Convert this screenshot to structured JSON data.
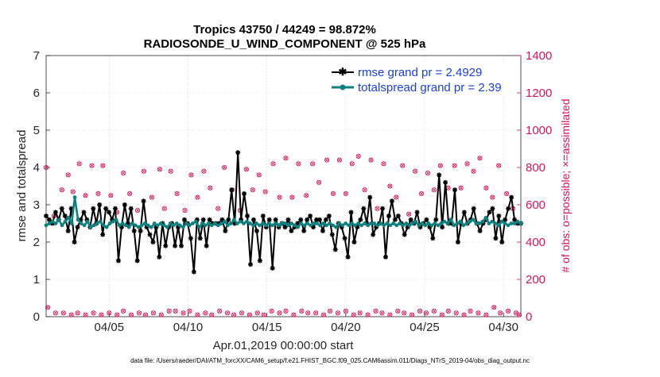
{
  "chart_data": {
    "type": "line",
    "title_line1": "Tropics 43750 / 44249 = 98.872%",
    "title_line2": "RADIOSONDE_U_WIND_COMPONENT @ 525 hPa",
    "xlabel": "Apr.01,2019 00:00:00 start",
    "ylabel": "rmse and totalspread",
    "ylabel_right": "# of obs: o=possible; ×=assimilated",
    "x_ticks": [
      {
        "day": 5,
        "label": "04/05"
      },
      {
        "day": 10,
        "label": "04/10"
      },
      {
        "day": 15,
        "label": "04/15"
      },
      {
        "day": 20,
        "label": "04/20"
      },
      {
        "day": 25,
        "label": "04/25"
      },
      {
        "day": 30,
        "label": "04/30"
      }
    ],
    "xlim": [
      1,
      31.1
    ],
    "ylim": [
      0,
      7
    ],
    "y_ticks": [
      "0",
      "1",
      "2",
      "3",
      "4",
      "5",
      "6",
      "7"
    ],
    "ylim_right": [
      0,
      1400
    ],
    "y_ticks_right": [
      "0",
      "200",
      "400",
      "600",
      "800",
      "1000",
      "1200",
      "1400"
    ],
    "footer": "data file: /Users/raeder/DAI/ATM_forcXX/CAM6_setup/f.e21.FHIST_BGC.f09_025.CAM6assim.011/Diags_NTrS_2019-04/obs_diag_output.nc",
    "colors": {
      "rmse": "#000000",
      "spread": "#0f8080",
      "obs": "#d6135a",
      "legend_text": "#1a3fd6"
    },
    "series": [
      {
        "name": "rmse grand pr = 2.4929",
        "key": "rmse",
        "values": [
          2.7,
          2.6,
          2.5,
          2.8,
          2.6,
          2.9,
          2.7,
          2.3,
          2.9,
          2.0,
          2.4,
          2.6,
          2.8,
          2.6,
          2.4,
          2.9,
          2.5,
          3.0,
          2.2,
          2.9,
          2.8,
          2.6,
          2.9,
          1.5,
          2.4,
          3.0,
          2.5,
          2.9,
          2.3,
          1.5,
          2.3,
          3.1,
          2.4,
          2.2,
          2.0,
          2.4,
          1.6,
          2.5,
          1.9,
          2.4,
          2.5,
          1.9,
          2.4,
          1.9,
          2.6,
          2.5,
          2.1,
          1.2,
          2.6,
          2.1,
          2.6,
          1.9,
          2.6,
          2.5,
          2.5,
          2.5,
          2.6,
          2.3,
          2.6,
          3.4,
          2.5,
          4.4,
          2.6,
          3.3,
          2.7,
          1.4,
          2.6,
          2.3,
          1.5,
          2.7,
          2.4,
          2.6,
          1.3,
          2.6,
          2.4,
          2.5,
          2.4,
          2.6,
          2.3,
          2.4,
          2.5,
          2.6,
          2.3,
          2.6,
          2.7,
          2.4,
          2.6,
          2.6,
          2.3,
          2.6,
          2.7,
          2.2,
          1.8,
          2.5,
          2.4,
          2.1,
          1.6,
          2.8,
          2.0,
          2.4,
          2.6,
          2.9,
          2.5,
          3.2,
          2.2,
          2.4,
          2.5,
          2.9,
          1.6,
          2.7,
          3.1,
          2.6,
          2.7,
          2.5,
          2.2,
          2.4,
          2.6,
          2.5,
          2.8,
          2.4,
          2.5,
          2.6,
          2.4,
          2.1,
          2.6,
          3.8,
          2.4,
          3.6,
          2.5,
          2.5,
          3.4,
          2.0,
          2.5,
          2.8,
          2.5,
          2.6,
          2.9,
          2.5,
          2.3,
          2.5,
          2.6,
          2.8,
          2.9,
          2.1,
          2.7,
          2.0,
          2.6,
          2.9,
          3.2,
          2.6,
          2.5,
          2.5
        ]
      },
      {
        "name": "totalspread grand pr = 2.39",
        "key": "spread",
        "values": [
          2.45,
          2.5,
          2.55,
          2.5,
          2.6,
          2.45,
          2.55,
          2.65,
          2.5,
          3.2,
          2.6,
          2.5,
          2.45,
          2.55,
          2.4,
          2.45,
          2.5,
          2.55,
          2.45,
          2.4,
          2.5,
          2.55,
          2.6,
          2.45,
          2.5,
          2.45,
          2.4,
          2.5,
          2.45,
          2.4,
          2.45,
          2.5,
          2.45,
          2.4,
          2.5,
          2.45,
          2.5,
          2.45,
          2.4,
          2.5,
          2.45,
          2.5,
          2.45,
          2.4,
          2.5,
          2.45,
          2.5,
          2.55,
          2.4,
          2.5,
          2.45,
          2.5,
          2.45,
          2.5,
          2.45,
          2.5,
          2.55,
          2.45,
          2.5,
          2.6,
          2.5,
          2.55,
          2.5,
          2.55,
          2.5,
          2.45,
          2.5,
          2.45,
          2.5,
          2.45,
          2.5,
          2.45,
          2.5,
          2.45,
          2.5,
          2.5,
          2.45,
          2.5,
          2.45,
          2.4,
          2.5,
          2.45,
          2.5,
          2.45,
          2.5,
          2.5,
          2.45,
          2.5,
          2.45,
          2.5,
          2.45,
          2.4,
          2.5,
          2.45,
          2.5,
          2.45,
          2.5,
          2.45,
          2.5,
          2.45,
          2.5,
          2.45,
          2.5,
          2.5,
          2.45,
          2.5,
          2.45,
          2.5,
          2.45,
          2.5,
          2.45,
          2.5,
          2.45,
          2.5,
          2.45,
          2.5,
          2.55,
          2.45,
          2.5,
          2.45,
          2.5,
          2.45,
          2.5,
          2.45,
          2.5,
          2.55,
          2.5,
          2.6,
          2.45,
          2.5,
          2.55,
          2.45,
          2.5,
          2.55,
          2.6,
          2.5,
          2.5,
          2.55,
          2.65,
          2.5,
          2.55,
          2.5,
          2.45,
          2.55,
          2.5,
          2.45,
          2.5,
          2.5,
          2.55,
          2.5
        ]
      }
    ],
    "obs_possible": [
      {
        "day": 1.0,
        "count": 800
      },
      {
        "day": 1.5,
        "count": 540
      },
      {
        "day": 2.0,
        "count": 680
      },
      {
        "day": 2.4,
        "count": 760
      },
      {
        "day": 2.7,
        "count": 670
      },
      {
        "day": 3.1,
        "count": 820
      },
      {
        "day": 3.5,
        "count": 650
      },
      {
        "day": 3.9,
        "count": 810
      },
      {
        "day": 4.3,
        "count": 660
      },
      {
        "day": 4.6,
        "count": 810
      },
      {
        "day": 5.1,
        "count": 650
      },
      {
        "day": 5.5,
        "count": 560
      },
      {
        "day": 5.9,
        "count": 770
      },
      {
        "day": 6.3,
        "count": 660
      },
      {
        "day": 6.8,
        "count": 570
      },
      {
        "day": 7.2,
        "count": 780
      },
      {
        "day": 7.7,
        "count": 640
      },
      {
        "day": 8.2,
        "count": 790
      },
      {
        "day": 8.5,
        "count": 580
      },
      {
        "day": 8.9,
        "count": 780
      },
      {
        "day": 9.3,
        "count": 660
      },
      {
        "day": 9.8,
        "count": 570
      },
      {
        "day": 10.2,
        "count": 760
      },
      {
        "day": 10.6,
        "count": 640
      },
      {
        "day": 11.0,
        "count": 780
      },
      {
        "day": 11.4,
        "count": 690
      },
      {
        "day": 11.9,
        "count": 580
      },
      {
        "day": 12.3,
        "count": 800
      },
      {
        "day": 12.8,
        "count": 680
      },
      {
        "day": 13.3,
        "count": 570
      },
      {
        "day": 13.7,
        "count": 790
      },
      {
        "day": 14.1,
        "count": 680
      },
      {
        "day": 14.5,
        "count": 760
      },
      {
        "day": 14.9,
        "count": 670
      },
      {
        "day": 15.4,
        "count": 820
      },
      {
        "day": 15.8,
        "count": 640
      },
      {
        "day": 16.2,
        "count": 850
      },
      {
        "day": 16.6,
        "count": 640
      },
      {
        "day": 17.0,
        "count": 820
      },
      {
        "day": 17.5,
        "count": 650
      },
      {
        "day": 17.9,
        "count": 820
      },
      {
        "day": 18.3,
        "count": 720
      },
      {
        "day": 18.8,
        "count": 840
      },
      {
        "day": 19.2,
        "count": 660
      },
      {
        "day": 19.6,
        "count": 840
      },
      {
        "day": 20.0,
        "count": 660
      },
      {
        "day": 20.4,
        "count": 820
      },
      {
        "day": 20.8,
        "count": 860
      },
      {
        "day": 21.2,
        "count": 680
      },
      {
        "day": 21.6,
        "count": 840
      },
      {
        "day": 22.0,
        "count": 580
      },
      {
        "day": 22.4,
        "count": 820
      },
      {
        "day": 22.8,
        "count": 700
      },
      {
        "day": 23.2,
        "count": 640
      },
      {
        "day": 23.6,
        "count": 810
      },
      {
        "day": 24.0,
        "count": 550
      },
      {
        "day": 24.4,
        "count": 780
      },
      {
        "day": 24.8,
        "count": 660
      },
      {
        "day": 25.2,
        "count": 770
      },
      {
        "day": 25.6,
        "count": 680
      },
      {
        "day": 26.0,
        "count": 810
      },
      {
        "day": 26.5,
        "count": 690
      },
      {
        "day": 26.9,
        "count": 810
      },
      {
        "day": 27.3,
        "count": 690
      },
      {
        "day": 27.7,
        "count": 820
      },
      {
        "day": 28.1,
        "count": 780
      },
      {
        "day": 28.5,
        "count": 850
      },
      {
        "day": 28.9,
        "count": 690
      },
      {
        "day": 29.3,
        "count": 640
      },
      {
        "day": 29.7,
        "count": 810
      },
      {
        "day": 30.2,
        "count": 660
      },
      {
        "day": 30.6,
        "count": 580
      }
    ],
    "obs_possible_low": [
      {
        "day": 1.1,
        "count": 50
      },
      {
        "day": 1.6,
        "count": 20
      },
      {
        "day": 2.1,
        "count": 20
      },
      {
        "day": 2.6,
        "count": 10
      },
      {
        "day": 3.0,
        "count": 20
      },
      {
        "day": 3.5,
        "count": 10
      },
      {
        "day": 4.0,
        "count": 20
      },
      {
        "day": 4.5,
        "count": 10
      },
      {
        "day": 5.0,
        "count": 20
      },
      {
        "day": 5.5,
        "count": 10
      },
      {
        "day": 5.9,
        "count": 30
      },
      {
        "day": 6.4,
        "count": 10
      },
      {
        "day": 6.9,
        "count": 20
      },
      {
        "day": 7.3,
        "count": 10
      },
      {
        "day": 7.8,
        "count": 20
      },
      {
        "day": 8.3,
        "count": 10
      },
      {
        "day": 8.8,
        "count": 30
      },
      {
        "day": 9.2,
        "count": 30
      },
      {
        "day": 9.7,
        "count": 20
      },
      {
        "day": 10.1,
        "count": 30
      },
      {
        "day": 10.6,
        "count": 10
      },
      {
        "day": 11.1,
        "count": 20
      },
      {
        "day": 11.5,
        "count": 10
      },
      {
        "day": 12.0,
        "count": 30
      },
      {
        "day": 12.5,
        "count": 20
      },
      {
        "day": 12.9,
        "count": 10
      },
      {
        "day": 13.4,
        "count": 20
      },
      {
        "day": 13.9,
        "count": 10
      },
      {
        "day": 14.4,
        "count": 20
      },
      {
        "day": 14.8,
        "count": 10
      },
      {
        "day": 15.3,
        "count": 30
      },
      {
        "day": 15.8,
        "count": 20
      },
      {
        "day": 16.2,
        "count": 30
      },
      {
        "day": 16.7,
        "count": 10
      },
      {
        "day": 17.2,
        "count": 30
      },
      {
        "day": 17.6,
        "count": 20
      },
      {
        "day": 18.1,
        "count": 20
      },
      {
        "day": 18.6,
        "count": 10
      },
      {
        "day": 19.0,
        "count": 30
      },
      {
        "day": 19.5,
        "count": 20
      },
      {
        "day": 20.0,
        "count": 30
      },
      {
        "day": 20.5,
        "count": 10
      },
      {
        "day": 20.9,
        "count": 20
      },
      {
        "day": 21.4,
        "count": 10
      },
      {
        "day": 21.9,
        "count": 30
      },
      {
        "day": 22.3,
        "count": 20
      },
      {
        "day": 22.8,
        "count": 10
      },
      {
        "day": 23.3,
        "count": 30
      },
      {
        "day": 23.7,
        "count": 20
      },
      {
        "day": 24.2,
        "count": 10
      },
      {
        "day": 24.7,
        "count": 30
      },
      {
        "day": 25.1,
        "count": 20
      },
      {
        "day": 25.6,
        "count": 30
      },
      {
        "day": 26.1,
        "count": 10
      },
      {
        "day": 26.5,
        "count": 30
      },
      {
        "day": 27.0,
        "count": 20
      },
      {
        "day": 27.5,
        "count": 10
      },
      {
        "day": 27.9,
        "count": 30
      },
      {
        "day": 28.4,
        "count": 20
      },
      {
        "day": 28.9,
        "count": 10
      },
      {
        "day": 29.4,
        "count": 50
      },
      {
        "day": 29.8,
        "count": 20
      },
      {
        "day": 30.3,
        "count": 30
      },
      {
        "day": 30.8,
        "count": 20
      },
      {
        "day": 31.0,
        "count": 10
      }
    ]
  }
}
